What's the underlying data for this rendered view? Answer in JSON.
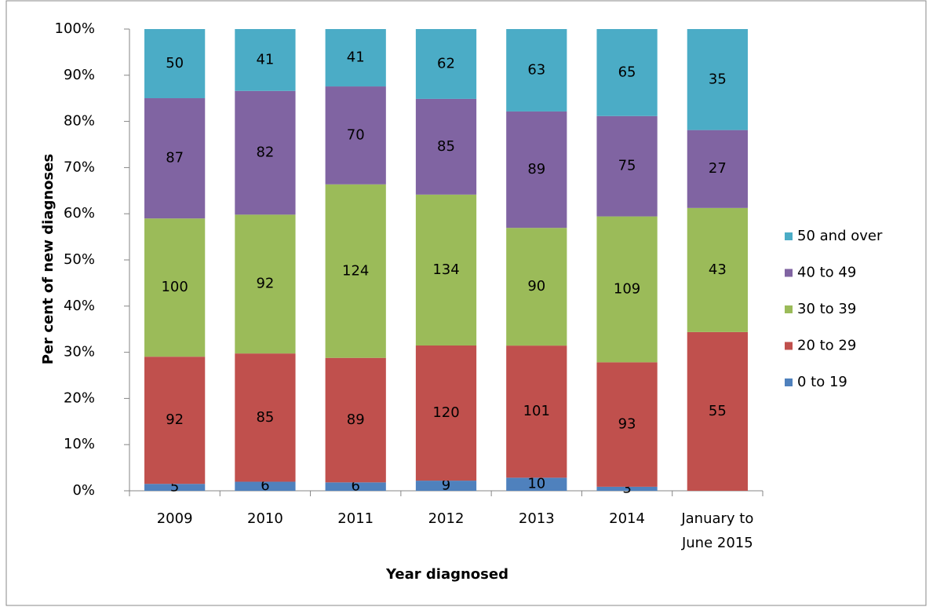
{
  "chart_data": {
    "type": "bar",
    "stacking": "percent",
    "x_label": "Year diagnosed",
    "y_label": "Per cent of new diagnoses",
    "categories": [
      "2009",
      "2010",
      "2011",
      "2012",
      "2013",
      "2014",
      "January to June 2015"
    ],
    "series": [
      {
        "name": "0 to 19",
        "color": "#4f81bd",
        "values": [
          5,
          6,
          6,
          9,
          10,
          3,
          null
        ]
      },
      {
        "name": "20 to 29",
        "color": "#c0504d",
        "values": [
          92,
          85,
          89,
          120,
          101,
          93,
          55
        ]
      },
      {
        "name": "30 to 39",
        "color": "#9bbb59",
        "values": [
          100,
          92,
          124,
          134,
          90,
          109,
          43
        ]
      },
      {
        "name": "40 to 49",
        "color": "#8064a2",
        "values": [
          87,
          82,
          70,
          85,
          89,
          75,
          27
        ]
      },
      {
        "name": "50 and over",
        "color": "#4bacc6",
        "values": [
          50,
          41,
          41,
          62,
          63,
          65,
          35
        ]
      }
    ],
    "ylim": [
      0,
      100
    ],
    "yticks": [
      {
        "value": 0,
        "label": "0%"
      },
      {
        "value": 10,
        "label": "10%"
      },
      {
        "value": 20,
        "label": "20%"
      },
      {
        "value": 30,
        "label": "30%"
      },
      {
        "value": 40,
        "label": "40%"
      },
      {
        "value": 50,
        "label": "50%"
      },
      {
        "value": 60,
        "label": "60%"
      },
      {
        "value": 70,
        "label": "70%"
      },
      {
        "value": 80,
        "label": "80%"
      },
      {
        "value": 90,
        "label": "90%"
      },
      {
        "value": 100,
        "label": "100%"
      }
    ],
    "legend": "right",
    "grid": false
  }
}
